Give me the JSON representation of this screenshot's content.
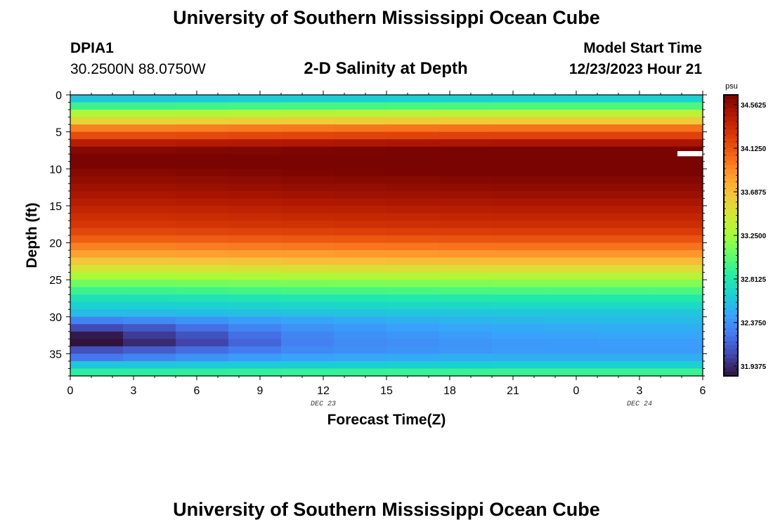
{
  "header": {
    "title": "University of Southern Mississippi Ocean Cube",
    "station_id": "DPIA1",
    "coordinates": "30.2500N  88.0750W",
    "plot_title": "2-D Salinity at Depth",
    "model_label": "Model Start Time",
    "model_time": "12/23/2023 Hour 21"
  },
  "footer": {
    "title": "University of Southern Mississippi Ocean Cube"
  },
  "colors": {
    "colormap": [
      "#30123b",
      "#4145ab",
      "#4675ed",
      "#39a2fc",
      "#1bcfd4",
      "#24eca6",
      "#61fc6c",
      "#a4fc3b",
      "#d1e834",
      "#f3c63a",
      "#fe9b2d",
      "#f36315",
      "#d93806",
      "#b11901",
      "#7a0402"
    ]
  },
  "chart_data": {
    "type": "heatmap",
    "title": "2-D Salinity at Depth",
    "xlabel": "Forecast Time(Z)",
    "ylabel": "Depth (ft)",
    "x_tick_labels": [
      "0",
      "3",
      "6",
      "9",
      "12",
      "15",
      "18",
      "21",
      "0",
      "3",
      "6"
    ],
    "y_tick_labels": [
      "0",
      "5",
      "10",
      "15",
      "20",
      "25",
      "30",
      "35"
    ],
    "date_labels": [
      {
        "label": "DEC 23",
        "forecast_hour": 12
      },
      {
        "label": "DEC 24",
        "forecast_hour": 27
      }
    ],
    "xlim": [
      0,
      30
    ],
    "ylim": [
      0,
      38
    ],
    "time_step_hours": 2.5,
    "depth_step_ft": 1,
    "colorbar": {
      "unit": "psu",
      "vmin": 31.9375,
      "vmax": 34.5625,
      "ticks": [
        "31.9375",
        "32.3750",
        "32.8125",
        "33.2500",
        "33.6875",
        "34.1250",
        "34.5625"
      ]
    },
    "profile": {
      "depths": [
        0,
        1,
        2,
        3,
        4,
        5,
        6,
        7,
        8,
        9,
        10,
        11,
        12,
        13,
        14,
        15,
        16,
        17,
        18,
        19,
        20,
        21,
        22,
        23,
        24,
        25,
        26,
        27,
        28,
        29,
        30,
        31,
        32,
        33,
        34,
        35,
        36,
        37
      ],
      "salinity": [
        32.65,
        32.95,
        33.3,
        33.55,
        33.9,
        34.1,
        34.35,
        34.52,
        34.58,
        34.56,
        34.52,
        34.48,
        34.44,
        34.4,
        34.35,
        34.3,
        34.25,
        34.2,
        34.12,
        34.02,
        33.9,
        33.78,
        33.62,
        33.45,
        33.28,
        33.1,
        32.95,
        32.8,
        32.7,
        32.6,
        32.55,
        32.5,
        32.47,
        32.43,
        32.42,
        32.5,
        32.65,
        32.9
      ]
    },
    "time_trend": [
      0.0,
      0.0,
      0.01,
      0.02,
      0.03,
      0.035,
      0.04,
      0.045,
      0.05,
      0.05,
      0.05,
      0.05
    ],
    "deep_anomaly": [
      {
        "depth": 30,
        "values": [
          -0.18,
          -0.15,
          -0.12,
          -0.09,
          -0.07,
          -0.05,
          -0.03,
          -0.02,
          -0.01,
          0.0,
          0.0,
          0.0
        ]
      },
      {
        "depth": 31,
        "values": [
          -0.35,
          -0.3,
          -0.22,
          -0.14,
          -0.1,
          -0.07,
          -0.05,
          -0.03,
          -0.02,
          -0.01,
          0.0,
          0.0
        ]
      },
      {
        "depth": 32,
        "values": [
          -0.5,
          -0.38,
          -0.3,
          -0.2,
          -0.12,
          -0.08,
          -0.06,
          -0.04,
          -0.02,
          -0.01,
          0.0,
          0.0
        ]
      },
      {
        "depth": 33,
        "values": [
          -0.52,
          -0.4,
          -0.32,
          -0.2,
          -0.1,
          -0.06,
          -0.05,
          -0.03,
          -0.02,
          -0.01,
          0.0,
          0.0
        ]
      },
      {
        "depth": 34,
        "values": [
          -0.25,
          -0.2,
          -0.15,
          -0.1,
          -0.05,
          -0.03,
          -0.02,
          -0.01,
          0.0,
          0.0,
          0.0,
          0.0
        ]
      },
      {
        "depth": 35,
        "values": [
          -0.18,
          -0.12,
          -0.08,
          -0.05,
          -0.03,
          -0.02,
          -0.01,
          0.0,
          0.0,
          0.0,
          0.0,
          0.0
        ]
      }
    ],
    "missing_cell": {
      "depth_start": 7.6,
      "depth_end": 8.3,
      "forecast_hour_start": 28.8,
      "forecast_hour_end": 30
    }
  }
}
